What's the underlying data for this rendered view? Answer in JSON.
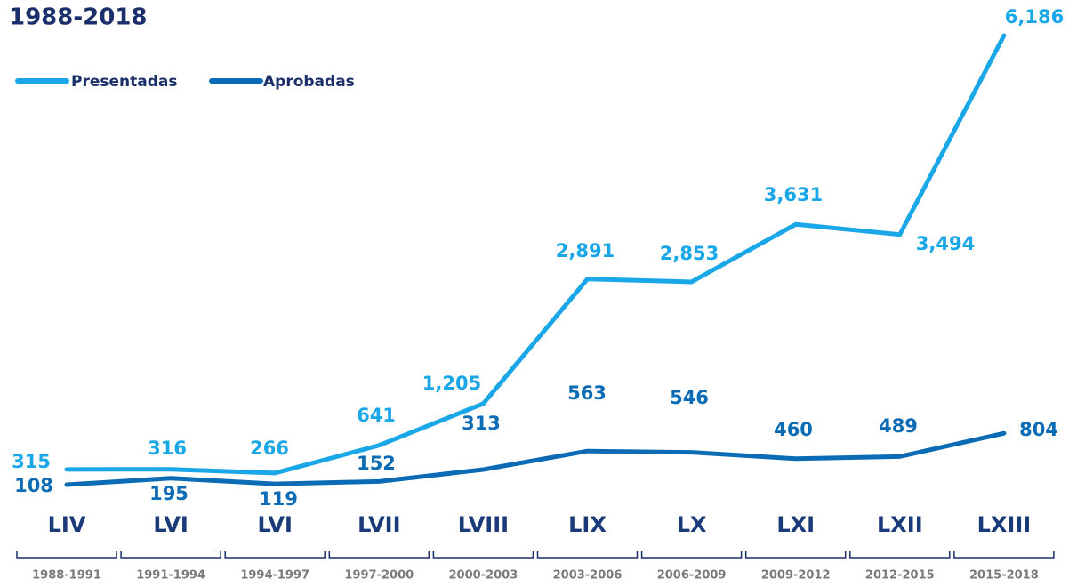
{
  "chart_data": {
    "type": "line",
    "title": "1988-2018",
    "categories": [
      "LIV",
      "LVI",
      "LVI",
      "LVII",
      "LVIII",
      "LIX",
      "LX",
      "LXI",
      "LXII",
      "LXIII"
    ],
    "periods": [
      "1988-1991",
      "1991-1994",
      "1994-1997",
      "1997-2000",
      "2000-2003",
      "2003-2006",
      "2006-2009",
      "2009-2012",
      "2012-2015",
      "2015-2018"
    ],
    "series": [
      {
        "name": "Presentadas",
        "color": "#1aa7e8",
        "values": [
          315,
          316,
          266,
          641,
          1205,
          2891,
          2853,
          3631,
          3494,
          6186
        ],
        "value_labels": [
          "315",
          "316",
          "266",
          "641",
          "1,205",
          "2,891",
          "2,853",
          "3,631",
          "3,494",
          "6,186"
        ]
      },
      {
        "name": "Aprobadas",
        "color": "#0c6bb5",
        "values": [
          108,
          195,
          119,
          152,
          313,
          563,
          546,
          460,
          489,
          804
        ],
        "value_labels": [
          "108",
          "195",
          "119",
          "152",
          "313",
          "563",
          "546",
          "460",
          "489",
          "804"
        ]
      }
    ]
  }
}
